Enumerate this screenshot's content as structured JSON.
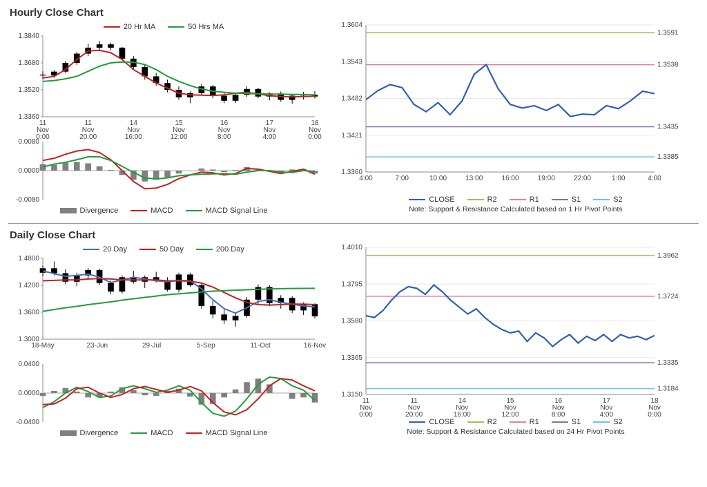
{
  "hourly": {
    "title": "Hourly Close Chart",
    "price": {
      "legend": [
        {
          "label": "20 Hr MA",
          "color": "#c62020"
        },
        {
          "label": "50 Hrs MA",
          "color": "#1f9d3a"
        }
      ],
      "ylim": [
        1.336,
        1.384
      ],
      "yticks": [
        1.336,
        1.352,
        1.368,
        1.384
      ],
      "xlabels": [
        "11 Nov 0:00",
        "11 Nov 20:00",
        "14 Nov 16:00",
        "15 Nov 12:00",
        "16 Nov 8:00",
        "17 Nov 4:00",
        "18 Nov 0:00"
      ],
      "candle_color": "#000000",
      "ma20_color": "#c62020",
      "ma50_color": "#1f9d3a",
      "ma20": [
        1.359,
        1.36,
        1.364,
        1.37,
        1.375,
        1.3755,
        1.374,
        1.37,
        1.364,
        1.36,
        1.356,
        1.353,
        1.35,
        1.349,
        1.3488,
        1.3486,
        1.349,
        1.35,
        1.3505,
        1.3495,
        1.3485,
        1.348,
        1.3478,
        1.348,
        1.3482
      ],
      "ma50": [
        1.357,
        1.3575,
        1.3585,
        1.36,
        1.363,
        1.366,
        1.368,
        1.3685,
        1.3684,
        1.367,
        1.364,
        1.36,
        1.357,
        1.3545,
        1.3525,
        1.3512,
        1.3505,
        1.35,
        1.3498,
        1.3496,
        1.3495,
        1.3494,
        1.3493,
        1.3492,
        1.349
      ],
      "candles": [
        {
          "o": 1.361,
          "h": 1.363,
          "l": 1.3585,
          "c": 1.3605
        },
        {
          "o": 1.3605,
          "h": 1.3638,
          "l": 1.3592,
          "c": 1.3628
        },
        {
          "o": 1.3628,
          "h": 1.369,
          "l": 1.362,
          "c": 1.368
        },
        {
          "o": 1.368,
          "h": 1.3745,
          "l": 1.3668,
          "c": 1.3735
        },
        {
          "o": 1.3735,
          "h": 1.3795,
          "l": 1.372,
          "c": 1.377
        },
        {
          "o": 1.377,
          "h": 1.381,
          "l": 1.375,
          "c": 1.379
        },
        {
          "o": 1.379,
          "h": 1.38,
          "l": 1.3755,
          "c": 1.377
        },
        {
          "o": 1.377,
          "h": 1.3775,
          "l": 1.3695,
          "c": 1.3705
        },
        {
          "o": 1.3705,
          "h": 1.372,
          "l": 1.364,
          "c": 1.3655
        },
        {
          "o": 1.3655,
          "h": 1.367,
          "l": 1.358,
          "c": 1.36
        },
        {
          "o": 1.36,
          "h": 1.362,
          "l": 1.3545,
          "c": 1.356
        },
        {
          "o": 1.356,
          "h": 1.358,
          "l": 1.3505,
          "c": 1.352
        },
        {
          "o": 1.352,
          "h": 1.354,
          "l": 1.346,
          "c": 1.3475
        },
        {
          "o": 1.3475,
          "h": 1.351,
          "l": 1.344,
          "c": 1.35
        },
        {
          "o": 1.35,
          "h": 1.3555,
          "l": 1.3488,
          "c": 1.354
        },
        {
          "o": 1.354,
          "h": 1.3548,
          "l": 1.347,
          "c": 1.3485
        },
        {
          "o": 1.3485,
          "h": 1.3505,
          "l": 1.344,
          "c": 1.3455
        },
        {
          "o": 1.3455,
          "h": 1.3498,
          "l": 1.3442,
          "c": 1.349
        },
        {
          "o": 1.349,
          "h": 1.354,
          "l": 1.3478,
          "c": 1.3525
        },
        {
          "o": 1.3525,
          "h": 1.3532,
          "l": 1.347,
          "c": 1.348
        },
        {
          "o": 1.348,
          "h": 1.3505,
          "l": 1.3458,
          "c": 1.3498
        },
        {
          "o": 1.3498,
          "h": 1.351,
          "l": 1.345,
          "c": 1.346
        },
        {
          "o": 1.346,
          "h": 1.3492,
          "l": 1.3438,
          "c": 1.3485
        },
        {
          "o": 1.3485,
          "h": 1.3508,
          "l": 1.3462,
          "c": 1.348
        },
        {
          "o": 1.348,
          "h": 1.3512,
          "l": 1.3468,
          "c": 1.349
        }
      ]
    },
    "macd": {
      "ylim": [
        -0.008,
        0.008
      ],
      "yticks": [
        -0.008,
        0.0,
        0.008
      ],
      "legend": [
        {
          "label": "Divergence",
          "color": "#808080",
          "type": "bar"
        },
        {
          "label": "MACD",
          "color": "#c62020",
          "type": "line"
        },
        {
          "label": "MACD Signal Line",
          "color": "#1f9d3a",
          "type": "line"
        }
      ],
      "div_color": "#808080",
      "macd_color": "#c62020",
      "signal_color": "#1f9d3a",
      "divergence": [
        0.0018,
        0.0016,
        0.0022,
        0.0024,
        0.002,
        0.0012,
        0.0002,
        -0.0012,
        -0.0025,
        -0.003,
        -0.0025,
        -0.0018,
        -0.0008,
        0.0,
        0.0006,
        0.0003,
        -0.0004,
        0.0002,
        0.001,
        0.0004,
        -0.0002,
        -0.0004,
        0.0003,
        0.0004,
        -0.0008
      ],
      "macd": [
        0.0028,
        0.0034,
        0.0045,
        0.0054,
        0.0058,
        0.005,
        0.003,
        0.0,
        -0.003,
        -0.005,
        -0.0048,
        -0.0038,
        -0.0022,
        -0.0012,
        -0.0004,
        -0.0006,
        -0.0012,
        -0.0008,
        0.0006,
        0.0004,
        -0.0002,
        -0.0008,
        -0.0002,
        0.0004,
        -0.001
      ],
      "signal": [
        0.001,
        0.0018,
        0.0023,
        0.003,
        0.0038,
        0.0038,
        0.0028,
        0.0012,
        -0.0005,
        -0.002,
        -0.0023,
        -0.002,
        -0.0014,
        -0.0012,
        -0.001,
        -0.0009,
        -0.0008,
        -0.001,
        -0.0004,
        0.0,
        0.0,
        -0.0004,
        -0.0005,
        0.0,
        -0.0002
      ]
    },
    "sr": {
      "ylim": [
        1.336,
        1.3604
      ],
      "yticks": [
        1.336,
        1.3421,
        1.3482,
        1.3543,
        1.3604
      ],
      "xlabels": [
        "4:00",
        "7:00",
        "10:00",
        "13:00",
        "16:00",
        "19:00",
        "22:00",
        "1:00",
        "4:00"
      ],
      "close_color": "#2e5fb0",
      "levels": {
        "R2": {
          "value": 1.3591,
          "color": "#b0b84f"
        },
        "R1": {
          "value": 1.3538,
          "color": "#e47fa0"
        },
        "S1": {
          "value": 1.3435,
          "color": "#8070b0"
        },
        "S2": {
          "value": 1.3385,
          "color": "#6bc6d6"
        }
      },
      "close": [
        1.348,
        1.3495,
        1.3505,
        1.35,
        1.3472,
        1.346,
        1.3475,
        1.3455,
        1.3478,
        1.3522,
        1.3538,
        1.3498,
        1.3472,
        1.3466,
        1.347,
        1.3462,
        1.3472,
        1.3452,
        1.3456,
        1.3455,
        1.347,
        1.3465,
        1.3478,
        1.3494,
        1.349
      ],
      "legend": [
        {
          "label": "CLOSE",
          "color": "#2e5fb0"
        },
        {
          "label": "R2",
          "color": "#b0b84f"
        },
        {
          "label": "R1",
          "color": "#e47fa0"
        },
        {
          "label": "S1",
          "color": "#8070b0"
        },
        {
          "label": "S2",
          "color": "#6bc6d6"
        }
      ],
      "note": "Note: Support & Resistance Calculated based on 1 Hr Pivot Points"
    }
  },
  "daily": {
    "title": "Daily Close Chart",
    "price": {
      "legend": [
        {
          "label": "20 Day",
          "color": "#4070c0"
        },
        {
          "label": "50 Day",
          "color": "#c62020"
        },
        {
          "label": "200 Day",
          "color": "#1f9d3a"
        }
      ],
      "ylim": [
        1.3,
        1.48
      ],
      "yticks": [
        1.3,
        1.36,
        1.42,
        1.48
      ],
      "xlabels": [
        "18-May",
        "23-Jun",
        "29-Jul",
        "5-Sep",
        "11-Oct",
        "16-Nov"
      ],
      "candle_color": "#000000",
      "ma20_color": "#4070c0",
      "ma50_color": "#c62020",
      "ma200_color": "#1f9d3a",
      "ma20": [
        1.452,
        1.446,
        1.44,
        1.442,
        1.445,
        1.438,
        1.426,
        1.432,
        1.438,
        1.434,
        1.43,
        1.428,
        1.431,
        1.43,
        1.412,
        1.388,
        1.368,
        1.358,
        1.37,
        1.384,
        1.388,
        1.382,
        1.378,
        1.374,
        1.372
      ],
      "ma50": [
        1.43,
        1.431,
        1.432,
        1.432,
        1.434,
        1.435,
        1.434,
        1.432,
        1.432,
        1.432,
        1.432,
        1.43,
        1.43,
        1.429,
        1.425,
        1.416,
        1.404,
        1.392,
        1.382,
        1.377,
        1.376,
        1.377,
        1.378,
        1.378,
        1.377
      ],
      "ma200": [
        1.362,
        1.366,
        1.37,
        1.373,
        1.377,
        1.38,
        1.383,
        1.387,
        1.39,
        1.393,
        1.396,
        1.399,
        1.401,
        1.403,
        1.405,
        1.407,
        1.408,
        1.409,
        1.41,
        1.411,
        1.412,
        1.4125,
        1.4128,
        1.413,
        1.4132
      ],
      "candles": [
        {
          "o": 1.448,
          "h": 1.464,
          "l": 1.44,
          "c": 1.458
        },
        {
          "o": 1.458,
          "h": 1.473,
          "l": 1.442,
          "c": 1.447
        },
        {
          "o": 1.447,
          "h": 1.456,
          "l": 1.422,
          "c": 1.428
        },
        {
          "o": 1.428,
          "h": 1.448,
          "l": 1.418,
          "c": 1.442
        },
        {
          "o": 1.442,
          "h": 1.459,
          "l": 1.432,
          "c": 1.454
        },
        {
          "o": 1.454,
          "h": 1.457,
          "l": 1.42,
          "c": 1.425
        },
        {
          "o": 1.425,
          "h": 1.43,
          "l": 1.4,
          "c": 1.406
        },
        {
          "o": 1.406,
          "h": 1.442,
          "l": 1.402,
          "c": 1.438
        },
        {
          "o": 1.438,
          "h": 1.452,
          "l": 1.424,
          "c": 1.428
        },
        {
          "o": 1.428,
          "h": 1.442,
          "l": 1.414,
          "c": 1.438
        },
        {
          "o": 1.438,
          "h": 1.45,
          "l": 1.426,
          "c": 1.43
        },
        {
          "o": 1.43,
          "h": 1.438,
          "l": 1.406,
          "c": 1.41
        },
        {
          "o": 1.41,
          "h": 1.448,
          "l": 1.404,
          "c": 1.444
        },
        {
          "o": 1.444,
          "h": 1.448,
          "l": 1.416,
          "c": 1.42
        },
        {
          "o": 1.42,
          "h": 1.424,
          "l": 1.368,
          "c": 1.374
        },
        {
          "o": 1.374,
          "h": 1.386,
          "l": 1.346,
          "c": 1.355
        },
        {
          "o": 1.355,
          "h": 1.366,
          "l": 1.334,
          "c": 1.342
        },
        {
          "o": 1.342,
          "h": 1.358,
          "l": 1.328,
          "c": 1.352
        },
        {
          "o": 1.352,
          "h": 1.394,
          "l": 1.348,
          "c": 1.388
        },
        {
          "o": 1.388,
          "h": 1.422,
          "l": 1.378,
          "c": 1.416
        },
        {
          "o": 1.416,
          "h": 1.42,
          "l": 1.374,
          "c": 1.38
        },
        {
          "o": 1.38,
          "h": 1.398,
          "l": 1.368,
          "c": 1.392
        },
        {
          "o": 1.392,
          "h": 1.396,
          "l": 1.358,
          "c": 1.364
        },
        {
          "o": 1.364,
          "h": 1.382,
          "l": 1.354,
          "c": 1.378
        },
        {
          "o": 1.378,
          "h": 1.38,
          "l": 1.346,
          "c": 1.351
        }
      ]
    },
    "macd": {
      "ylim": [
        -0.04,
        0.04
      ],
      "yticks": [
        -0.04,
        0.0,
        0.04
      ],
      "legend": [
        {
          "label": "Divergence",
          "color": "#808080",
          "type": "bar"
        },
        {
          "label": "MACD",
          "color": "#1f9d3a",
          "type": "line"
        },
        {
          "label": "MACD Signal Line",
          "color": "#c62020",
          "type": "line"
        }
      ],
      "div_color": "#808080",
      "macd_color": "#1f9d3a",
      "signal_color": "#c62020",
      "divergence": [
        -0.004,
        0.003,
        0.007,
        0.002,
        -0.006,
        -0.006,
        0.002,
        0.008,
        0.004,
        -0.003,
        -0.004,
        0.003,
        0.006,
        -0.005,
        -0.016,
        -0.015,
        -0.006,
        0.005,
        0.015,
        0.02,
        0.012,
        0.0,
        -0.008,
        -0.006,
        -0.013
      ],
      "macd": [
        -0.02,
        -0.012,
        0.0,
        0.008,
        0.002,
        -0.006,
        -0.004,
        0.006,
        0.01,
        0.006,
        0.001,
        0.004,
        0.01,
        0.004,
        -0.013,
        -0.028,
        -0.032,
        -0.025,
        -0.008,
        0.012,
        0.022,
        0.02,
        0.01,
        0.004,
        -0.01
      ],
      "signal": [
        -0.016,
        -0.015,
        -0.007,
        0.006,
        0.008,
        0.0,
        -0.006,
        -0.002,
        0.006,
        0.009,
        0.005,
        0.001,
        0.004,
        0.009,
        0.003,
        -0.013,
        -0.026,
        -0.03,
        -0.023,
        -0.008,
        0.01,
        0.02,
        0.018,
        0.01,
        0.003
      ]
    },
    "sr": {
      "ylim": [
        1.315,
        1.401
      ],
      "yticks": [
        1.315,
        1.3365,
        1.358,
        1.3795,
        1.401
      ],
      "xlabels": [
        "11 Nov 0:00",
        "11 Nov 20:00",
        "14 Nov 16:00",
        "15 Nov 12:00",
        "16 Nov 8:00",
        "17 Nov 4:00",
        "18 Nov 0:00"
      ],
      "close_color": "#2e5fb0",
      "levels": {
        "R2": {
          "value": 1.3962,
          "color": "#b0b84f"
        },
        "R1": {
          "value": 1.3724,
          "color": "#e47fa0"
        },
        "S1": {
          "value": 1.3335,
          "color": "#8070b0"
        },
        "S2": {
          "value": 1.3184,
          "color": "#6bc6d6"
        }
      },
      "close": [
        1.361,
        1.36,
        1.364,
        1.37,
        1.375,
        1.378,
        1.377,
        1.3735,
        1.379,
        1.375,
        1.37,
        1.366,
        1.362,
        1.365,
        1.36,
        1.356,
        1.353,
        1.351,
        1.352,
        1.346,
        1.351,
        1.348,
        1.343,
        1.347,
        1.35,
        1.345,
        1.349,
        1.3465,
        1.35,
        1.346,
        1.35,
        1.348,
        1.349,
        1.347,
        1.3495
      ],
      "legend": [
        {
          "label": "CLOSE",
          "color": "#2e5fb0"
        },
        {
          "label": "R2",
          "color": "#b0b84f"
        },
        {
          "label": "R1",
          "color": "#e47fa0"
        },
        {
          "label": "S1",
          "color": "#8070b0"
        },
        {
          "label": "S2",
          "color": "#6bc6d6"
        }
      ],
      "note": "Note: Support & Resistance Calculated based on 24 Hr Pivot Points"
    }
  }
}
